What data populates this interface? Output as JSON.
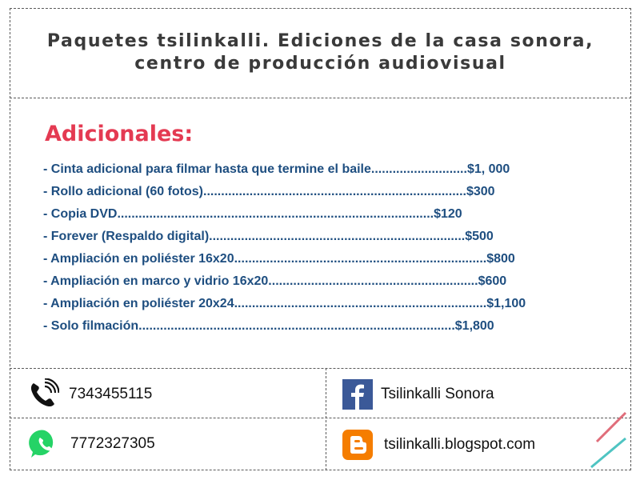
{
  "header": {
    "title_line1": "Paquetes tsilinkalli. Ediciones de la casa sonora,",
    "title_line2": "centro de producción audiovisual"
  },
  "section": {
    "title": "Adicionales:"
  },
  "items": [
    {
      "label": "- Cinta adicional para filmar hasta que termine el baile",
      "dots": "...........................",
      "price": "$1, 000"
    },
    {
      "label": "- Rollo adicional (60 fotos)",
      "dots": "..........................................................................",
      "price": "$300"
    },
    {
      "label": "- Copia DVD",
      "dots": ".........................................................................................",
      "price": "$120"
    },
    {
      "label": "- Forever (Respaldo digital)",
      "dots": "........................................................................",
      "price": "$500"
    },
    {
      "label": "- Ampliación en poliéster 16x20",
      "dots": ".......................................................................",
      "price": "$800"
    },
    {
      "label": "- Ampliación en marco y vidrio 16x20",
      "dots": "...........................................................",
      "price": "$600"
    },
    {
      "label": "- Ampliación en poliéster 20x24",
      "dots": ".......................................................................",
      "price": "$1,100"
    },
    {
      "label": "- Solo filmación",
      "dots": ".........................................................................................",
      "price": "$1,800"
    }
  ],
  "contacts": {
    "phone": {
      "icon": "phone-icon",
      "value": "7343455115"
    },
    "whatsapp": {
      "icon": "whatsapp-icon",
      "value": "7772327305"
    },
    "facebook": {
      "icon": "facebook-icon",
      "value": "Tsilinkalli Sonora"
    },
    "blogger": {
      "icon": "blogger-icon",
      "value": "tsilinkalli.blogspot.com"
    }
  },
  "colors": {
    "accent_red": "#e43a52",
    "item_blue": "#1e4e80",
    "facebook_blue": "#3b5998",
    "whatsapp_green": "#25d366",
    "blogger_orange": "#f57d00",
    "deco_red": "#e06d7a",
    "deco_teal": "#4fc4c2"
  }
}
